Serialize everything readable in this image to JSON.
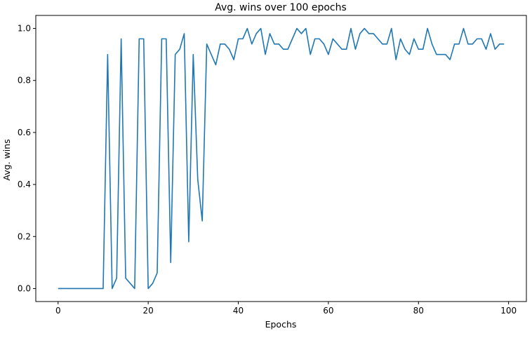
{
  "chart_data": {
    "type": "line",
    "title": "Avg. wins over 100 epochs",
    "xlabel": "Epochs",
    "ylabel": "Avg. wins",
    "xlim": [
      -4.95,
      103.95
    ],
    "ylim": [
      -0.05,
      1.05
    ],
    "xticks": [
      0,
      20,
      40,
      60,
      80,
      100
    ],
    "xtick_labels": [
      "0",
      "20",
      "40",
      "60",
      "80",
      "100"
    ],
    "yticks": [
      0.0,
      0.2,
      0.4,
      0.6,
      0.8,
      1.0
    ],
    "ytick_labels": [
      "0.0",
      "0.2",
      "0.4",
      "0.6",
      "0.8",
      "1.0"
    ],
    "grid": false,
    "legend": "none",
    "series": [
      {
        "color": "#1f77b4",
        "x": [
          0,
          1,
          2,
          3,
          4,
          5,
          6,
          7,
          8,
          9,
          10,
          11,
          12,
          13,
          14,
          15,
          16,
          17,
          18,
          19,
          20,
          21,
          22,
          23,
          24,
          25,
          26,
          27,
          28,
          29,
          30,
          31,
          32,
          33,
          34,
          35,
          36,
          37,
          38,
          39,
          40,
          41,
          42,
          43,
          44,
          45,
          46,
          47,
          48,
          49,
          50,
          51,
          52,
          53,
          54,
          55,
          56,
          57,
          58,
          59,
          60,
          61,
          62,
          63,
          64,
          65,
          66,
          67,
          68,
          69,
          70,
          71,
          72,
          73,
          74,
          75,
          76,
          77,
          78,
          79,
          80,
          81,
          82,
          83,
          84,
          85,
          86,
          87,
          88,
          89,
          90,
          91,
          92,
          93,
          94,
          95,
          96,
          97,
          98,
          99
        ],
        "values": [
          0,
          0,
          0,
          0,
          0,
          0,
          0,
          0,
          0,
          0,
          0,
          0.9,
          0,
          0.04,
          0.96,
          0.04,
          0.02,
          0,
          0.96,
          0.96,
          0,
          0.02,
          0.06,
          0.96,
          0.96,
          0.1,
          0.9,
          0.92,
          0.98,
          0.18,
          0.9,
          0.42,
          0.26,
          0.94,
          0.9,
          0.86,
          0.94,
          0.94,
          0.92,
          0.88,
          0.96,
          0.96,
          1.0,
          0.94,
          0.98,
          1.0,
          0.9,
          0.98,
          0.94,
          0.94,
          0.92,
          0.92,
          0.96,
          1.0,
          0.98,
          1.0,
          0.9,
          0.96,
          0.96,
          0.94,
          0.9,
          0.96,
          0.94,
          0.92,
          0.92,
          1.0,
          0.92,
          0.98,
          1.0,
          0.98,
          0.98,
          0.96,
          0.94,
          0.94,
          1.0,
          0.88,
          0.96,
          0.92,
          0.9,
          0.96,
          0.92,
          0.92,
          1.0,
          0.94,
          0.9,
          0.9,
          0.9,
          0.88,
          0.94,
          0.94,
          1.0,
          0.94,
          0.94,
          0.96,
          0.96,
          0.92,
          0.98,
          0.92,
          0.94,
          0.94
        ]
      }
    ]
  }
}
